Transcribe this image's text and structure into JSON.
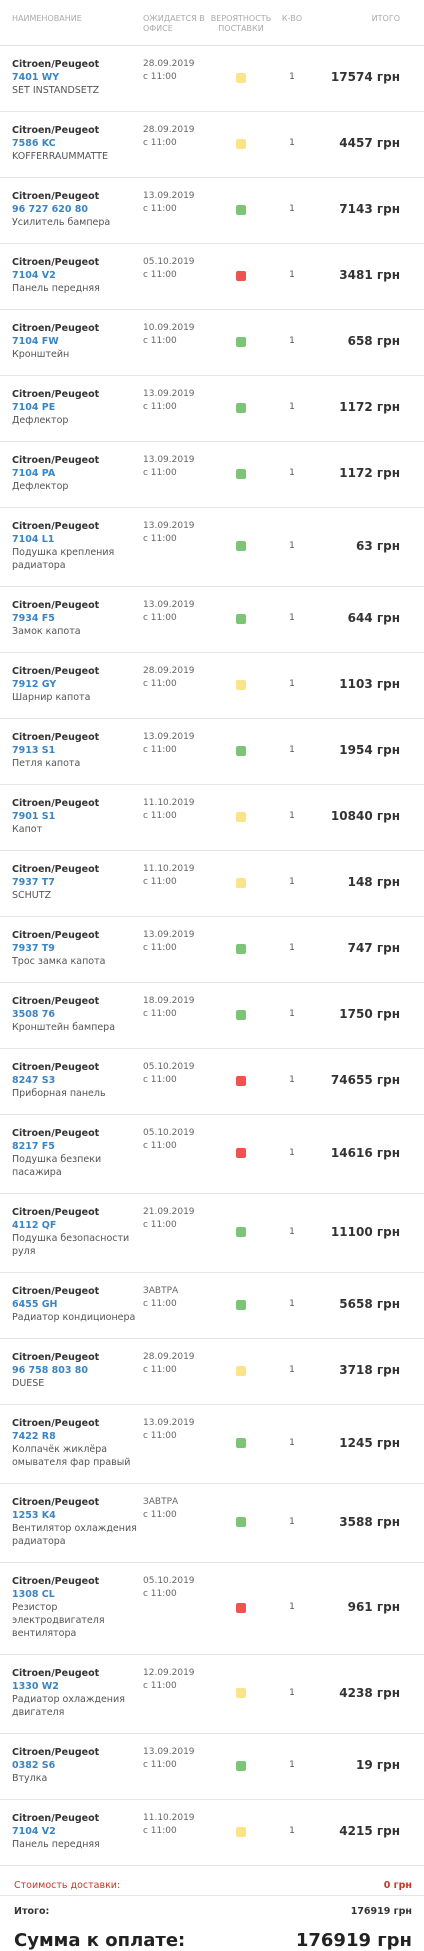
{
  "header": {
    "name": "НАИМЕНОВАНИЕ",
    "expected": "ОЖИДАЕТСЯ В ОФИСЕ",
    "probability": "ВЕРОЯТНОСТЬ ПОСТАВКИ",
    "qty": "К-ВО",
    "total": "ИТОГО"
  },
  "rows": [
    {
      "brand": "Citroen/Peugeot",
      "code": "7401 WY",
      "desc": "SET INSTANDSETZ",
      "date": "28.09.2019",
      "time": "с 11:00",
      "status_color": "#fbe38a",
      "qty": "1",
      "total": "17574 грн"
    },
    {
      "brand": "Citroen/Peugeot",
      "code": "7586 KC",
      "desc": "KOFFERRAUMMATTE",
      "date": "28.09.2019",
      "time": "с 11:00",
      "status_color": "#fbe38a",
      "qty": "1",
      "total": "4457 грн"
    },
    {
      "brand": "Citroen/Peugeot",
      "code": "96 727 620 80",
      "desc": "Усилитель бампера",
      "date": "13.09.2019",
      "time": "с 11:00",
      "status_color": "#7cc576",
      "qty": "1",
      "total": "7143 грн"
    },
    {
      "brand": "Citroen/Peugeot",
      "code": "7104 V2",
      "desc": "Панель передняя",
      "date": "05.10.2019",
      "time": "с 11:00",
      "status_color": "#ef5350",
      "qty": "1",
      "total": "3481 грн"
    },
    {
      "brand": "Citroen/Peugeot",
      "code": "7104 FW",
      "desc": "Кронштейн",
      "date": "10.09.2019",
      "time": "с 11:00",
      "status_color": "#7cc576",
      "qty": "1",
      "total": "658 грн"
    },
    {
      "brand": "Citroen/Peugeot",
      "code": "7104 PE",
      "desc": "Дефлектор",
      "date": "13.09.2019",
      "time": "с 11:00",
      "status_color": "#7cc576",
      "qty": "1",
      "total": "1172 грн"
    },
    {
      "brand": "Citroen/Peugeot",
      "code": "7104 PA",
      "desc": "Дефлектор",
      "date": "13.09.2019",
      "time": "с 11:00",
      "status_color": "#7cc576",
      "qty": "1",
      "total": "1172 грн"
    },
    {
      "brand": "Citroen/Peugeot",
      "code": "7104 L1",
      "desc": "Подушка крепления радиатора",
      "date": "13.09.2019",
      "time": "с 11:00",
      "status_color": "#7cc576",
      "qty": "1",
      "total": "63 грн"
    },
    {
      "brand": "Citroen/Peugeot",
      "code": "7934 F5",
      "desc": "Замок капота",
      "date": "13.09.2019",
      "time": "с 11:00",
      "status_color": "#7cc576",
      "qty": "1",
      "total": "644 грн"
    },
    {
      "brand": "Citroen/Peugeot",
      "code": "7912 GY",
      "desc": "Шарнир капота",
      "date": "28.09.2019",
      "time": "с 11:00",
      "status_color": "#fbe38a",
      "qty": "1",
      "total": "1103 грн"
    },
    {
      "brand": "Citroen/Peugeot",
      "code": "7913 S1",
      "desc": "Петля капота",
      "date": "13.09.2019",
      "time": "с 11:00",
      "status_color": "#7cc576",
      "qty": "1",
      "total": "1954 грн"
    },
    {
      "brand": "Citroen/Peugeot",
      "code": "7901 S1",
      "desc": "Капот",
      "date": "11.10.2019",
      "time": "с 11:00",
      "status_color": "#fbe38a",
      "qty": "1",
      "total": "10840 грн"
    },
    {
      "brand": "Citroen/Peugeot",
      "code": "7937 T7",
      "desc": "SCHUTZ",
      "date": "11.10.2019",
      "time": "с 11:00",
      "status_color": "#fbe38a",
      "qty": "1",
      "total": "148 грн"
    },
    {
      "brand": "Citroen/Peugeot",
      "code": "7937 T9",
      "desc": "Трос замка капота",
      "date": "13.09.2019",
      "time": "с 11:00",
      "status_color": "#7cc576",
      "qty": "1",
      "total": "747 грн"
    },
    {
      "brand": "Citroen/Peugeot",
      "code": "3508 76",
      "desc": "Кронштейн бампера",
      "date": "18.09.2019",
      "time": "с 11:00",
      "status_color": "#7cc576",
      "qty": "1",
      "total": "1750 грн"
    },
    {
      "brand": "Citroen/Peugeot",
      "code": "8247 S3",
      "desc": "Приборная панель",
      "date": "05.10.2019",
      "time": "с 11:00",
      "status_color": "#ef5350",
      "qty": "1",
      "total": "74655 грн"
    },
    {
      "brand": "Citroen/Peugeot",
      "code": "8217 F5",
      "desc": "Подушка безпеки пасажира",
      "date": "05.10.2019",
      "time": "с 11:00",
      "status_color": "#ef5350",
      "qty": "1",
      "total": "14616 грн"
    },
    {
      "brand": "Citroen/Peugeot",
      "code": "4112 QF",
      "desc": "Подушка безопасности руля",
      "date": "21.09.2019",
      "time": "с 11:00",
      "status_color": "#7cc576",
      "qty": "1",
      "total": "11100 грн"
    },
    {
      "brand": "Citroen/Peugeot",
      "code": "6455 GH",
      "desc": "Радиатор кондиционера",
      "date": "ЗАВТРА",
      "time": "с 11:00",
      "status_color": "#7cc576",
      "qty": "1",
      "total": "5658 грн"
    },
    {
      "brand": "Citroen/Peugeot",
      "code": "96 758 803 80",
      "desc": "DUESE",
      "date": "28.09.2019",
      "time": "с 11:00",
      "status_color": "#fbe38a",
      "qty": "1",
      "total": "3718 грн"
    },
    {
      "brand": "Citroen/Peugeot",
      "code": "7422 R8",
      "desc": "Колпачёк жиклёра омывателя фар правый",
      "date": "13.09.2019",
      "time": "с 11:00",
      "status_color": "#7cc576",
      "qty": "1",
      "total": "1245 грн"
    },
    {
      "brand": "Citroen/Peugeot",
      "code": "1253 K4",
      "desc": "Вентилятор охлаждения радиатора",
      "date": "ЗАВТРА",
      "time": "с 11:00",
      "status_color": "#7cc576",
      "qty": "1",
      "total": "3588 грн"
    },
    {
      "brand": "Citroen/Peugeot",
      "code": "1308 CL",
      "desc": "Резистор электродвигателя вентилятора",
      "date": "05.10.2019",
      "time": "с 11:00",
      "status_color": "#ef5350",
      "qty": "1",
      "total": "961 грн"
    },
    {
      "brand": "Citroen/Peugeot",
      "code": "1330 W2",
      "desc": "Радиатор охлаждения двигателя",
      "date": "12.09.2019",
      "time": "с 11:00",
      "status_color": "#fbe38a",
      "qty": "1",
      "total": "4238 грн"
    },
    {
      "brand": "Citroen/Peugeot",
      "code": "0382 S6",
      "desc": "Втулка",
      "date": "13.09.2019",
      "time": "с 11:00",
      "status_color": "#7cc576",
      "qty": "1",
      "total": "19 грн"
    },
    {
      "brand": "Citroen/Peugeot",
      "code": "7104 V2",
      "desc": "Панель передняя",
      "date": "11.10.2019",
      "time": "с 11:00",
      "status_color": "#fbe38a",
      "qty": "1",
      "total": "4215 грн"
    }
  ],
  "footer": {
    "delivery_label": "Стоимость доставки:",
    "delivery_value": "0 грн",
    "subtotal_label": "Итого:",
    "subtotal_value": "176919 грн",
    "pay_label": "Сумма к оплате:",
    "pay_value": "176919 грн"
  }
}
